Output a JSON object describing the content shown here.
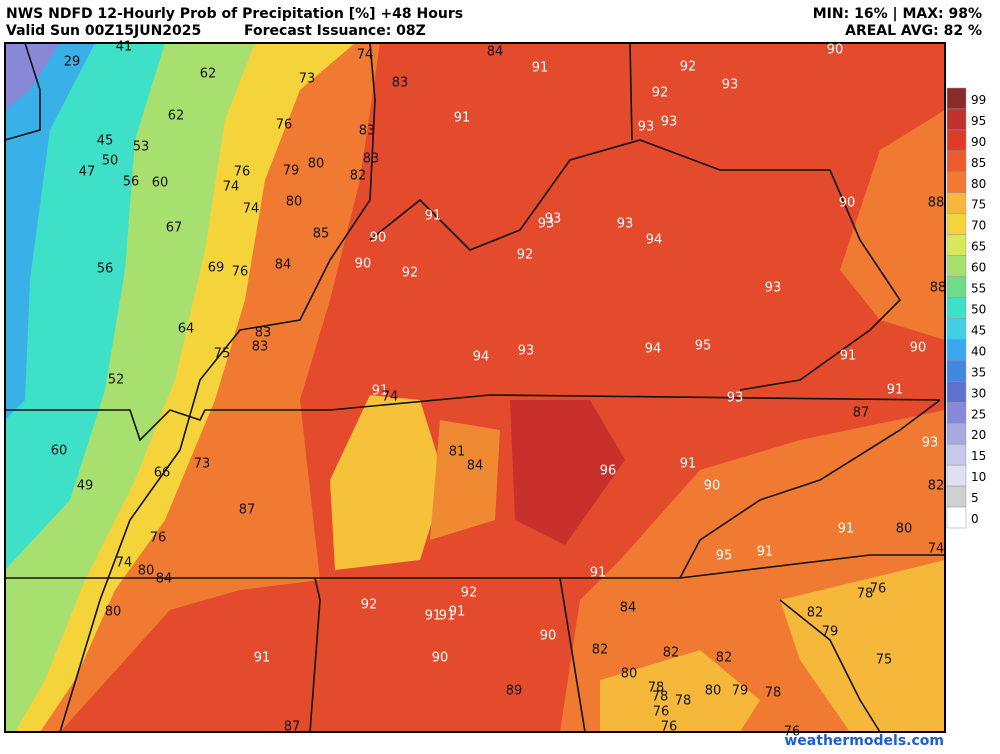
{
  "header": {
    "title": "NWS NDFD 12-Hourly Prob of Precipitation [%] +48 Hours",
    "valid": "Valid Sun 00Z15JUN2025",
    "issuance": "Forecast Issuance: 08Z",
    "minmax": "MIN: 16% | MAX: 98%",
    "areal": "AREAL AVG: 82 %"
  },
  "legend": {
    "levels": [
      99,
      95,
      90,
      85,
      80,
      75,
      70,
      65,
      60,
      55,
      50,
      45,
      40,
      35,
      30,
      25,
      20,
      15,
      10,
      5,
      0
    ],
    "colors": [
      "#8b2a2a",
      "#c0302c",
      "#e03a2a",
      "#ed5a2e",
      "#f07a32",
      "#f5b83a",
      "#f5d33a",
      "#d8e85a",
      "#a8e070",
      "#70dc8a",
      "#3fe0c8",
      "#3fd0e8",
      "#3aa8f0",
      "#4088e0",
      "#6070d0",
      "#8888d8",
      "#a8a8e0",
      "#c8c8ec",
      "#e0e0f0",
      "#d0d0d0",
      "#ffffff"
    ]
  },
  "map": {
    "labels": [
      41,
      29,
      62,
      73,
      74,
      84,
      91,
      92,
      90,
      92,
      93,
      83,
      62,
      76,
      83,
      91,
      93,
      93,
      45,
      53,
      50,
      47,
      56,
      60,
      76,
      79,
      80,
      83,
      82,
      74,
      80,
      74,
      91,
      93,
      93,
      93,
      90,
      88,
      67,
      85,
      90,
      94,
      92,
      92,
      90,
      56,
      69,
      76,
      84,
      93,
      88,
      64,
      83,
      83,
      75,
      94,
      93,
      94,
      95,
      91,
      90,
      52,
      91,
      74,
      93,
      91,
      87,
      60,
      81,
      84,
      96,
      91,
      93,
      66,
      73,
      49,
      90,
      82,
      87,
      76,
      91,
      80,
      95,
      91,
      74,
      74,
      80,
      84,
      91,
      76,
      78,
      92,
      92,
      91,
      91,
      91,
      84,
      82,
      80,
      90,
      79,
      82,
      82,
      82,
      91,
      90,
      75,
      80,
      89,
      78,
      80,
      79,
      78,
      78,
      78,
      76,
      76,
      87,
      76
    ]
  },
  "footer": {
    "credit": "weathermodels.com"
  }
}
